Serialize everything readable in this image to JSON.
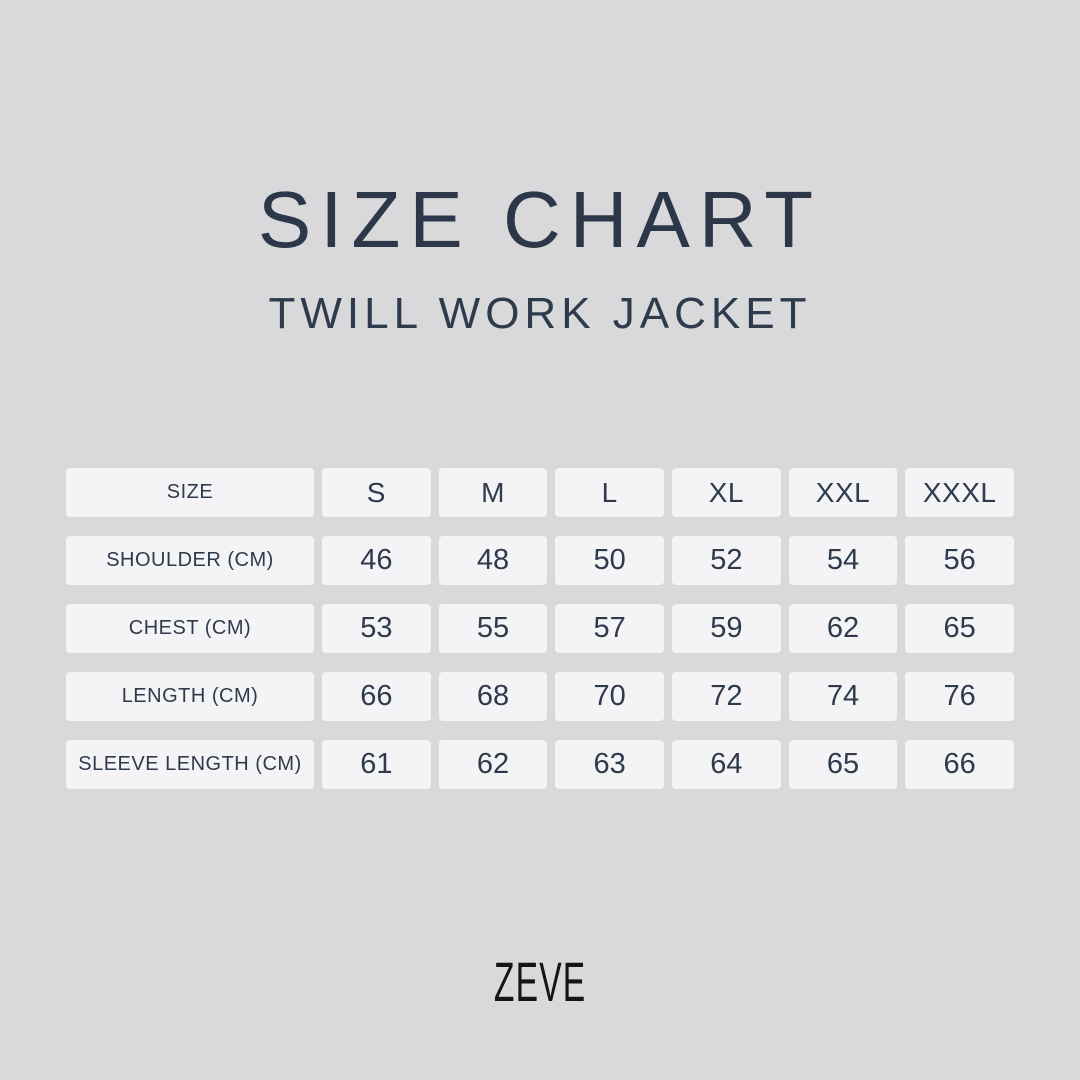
{
  "title": "SIZE CHART",
  "subtitle": "TWILL WORK JACKET",
  "brand": "ZEVE",
  "colors": {
    "background": "#d9d9db",
    "cell_background": "#f4f4f6",
    "text": "#2f3b4c",
    "logo": "#141414"
  },
  "table": {
    "header": [
      "SIZE",
      "S",
      "M",
      "L",
      "XL",
      "XXL",
      "XXXL"
    ],
    "rows": [
      {
        "label": "SHOULDER (CM)",
        "values": [
          "46",
          "48",
          "50",
          "52",
          "54",
          "56"
        ]
      },
      {
        "label": "CHEST (CM)",
        "values": [
          "53",
          "55",
          "57",
          "59",
          "62",
          "65"
        ]
      },
      {
        "label": "LENGTH (CM)",
        "values": [
          "66",
          "68",
          "70",
          "72",
          "74",
          "76"
        ]
      },
      {
        "label": "SLEEVE LENGTH (CM)",
        "values": [
          "61",
          "62",
          "63",
          "64",
          "65",
          "66"
        ]
      }
    ]
  },
  "chart_data": {
    "type": "table",
    "title": "SIZE CHART",
    "subtitle": "TWILL WORK JACKET",
    "columns": [
      "SIZE",
      "S",
      "M",
      "L",
      "XL",
      "XXL",
      "XXXL"
    ],
    "rows": [
      {
        "label": "SHOULDER (CM)",
        "values": [
          46,
          48,
          50,
          52,
          54,
          56
        ]
      },
      {
        "label": "CHEST (CM)",
        "values": [
          53,
          55,
          57,
          59,
          62,
          65
        ]
      },
      {
        "label": "LENGTH (CM)",
        "values": [
          66,
          68,
          70,
          72,
          74,
          76
        ]
      },
      {
        "label": "SLEEVE LENGTH (CM)",
        "values": [
          61,
          62,
          63,
          64,
          65,
          66
        ]
      }
    ]
  }
}
